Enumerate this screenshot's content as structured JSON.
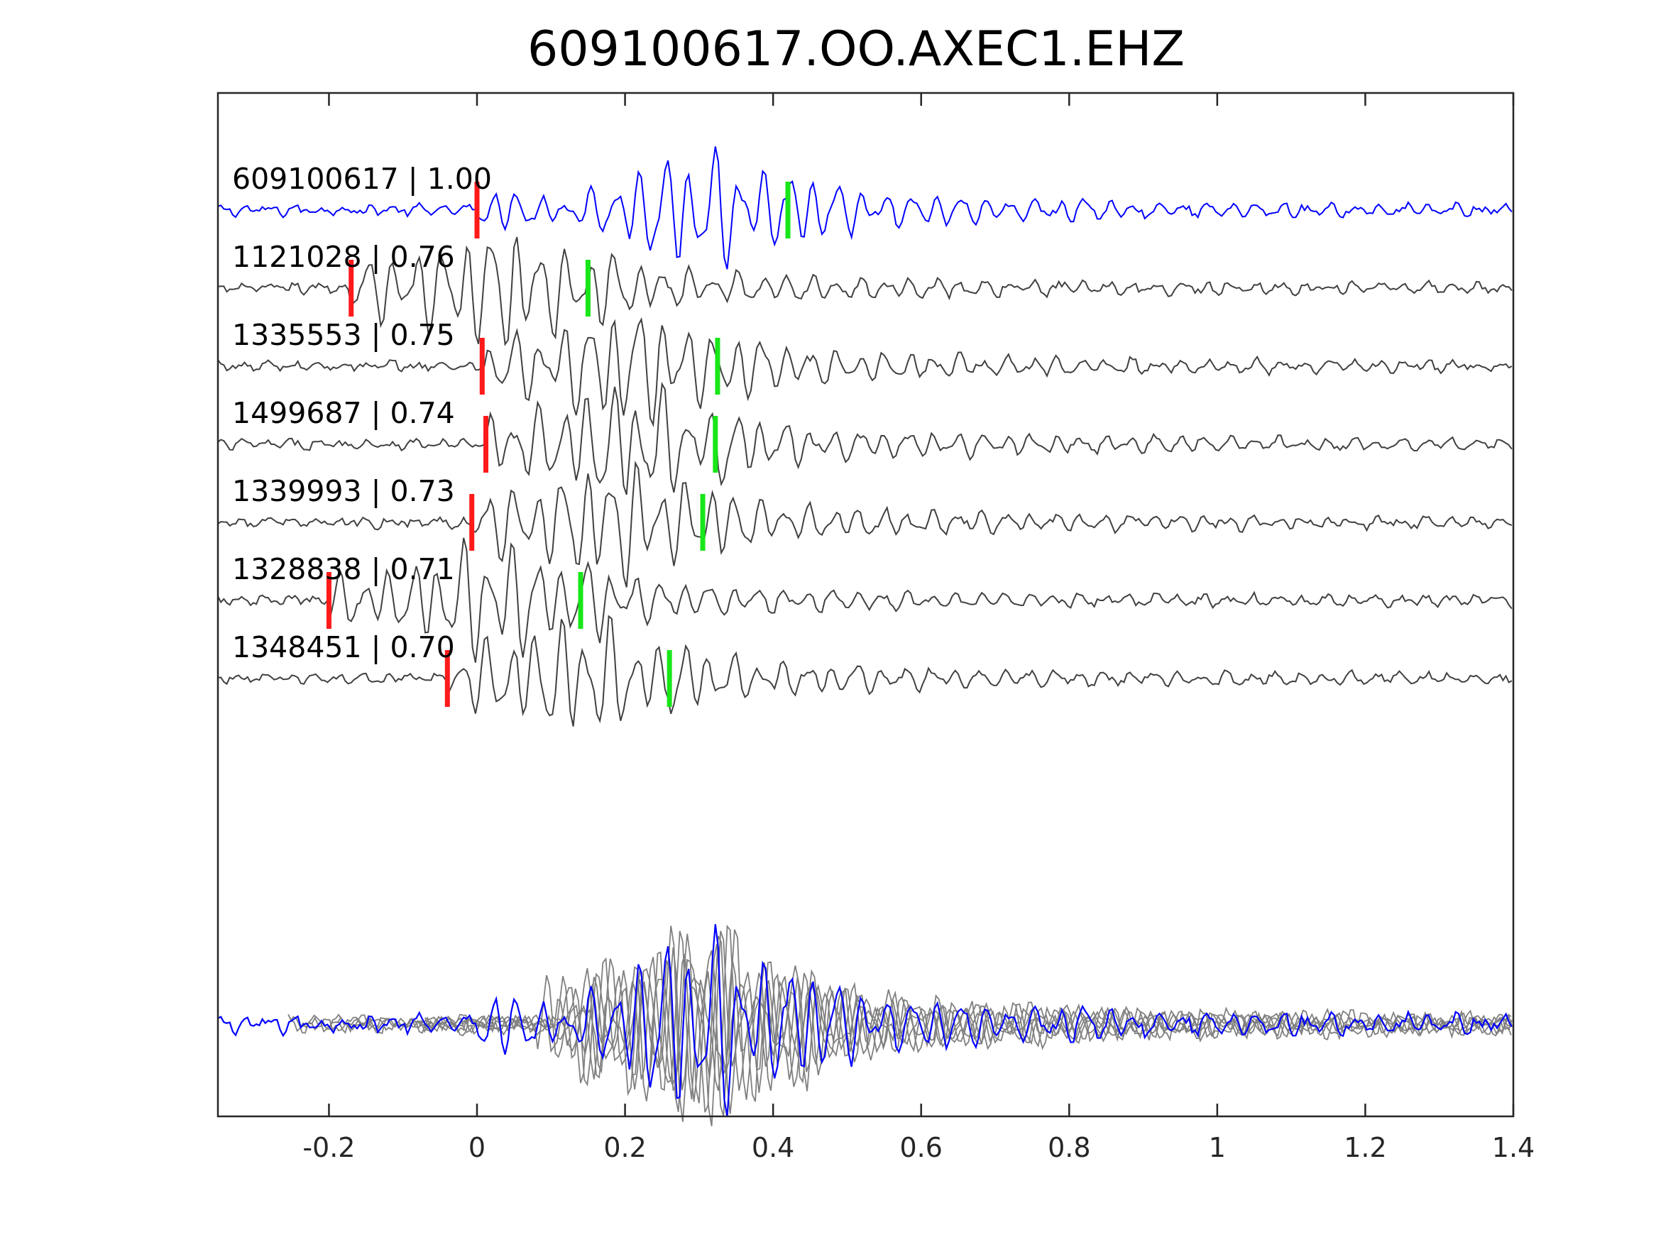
{
  "chart_data": {
    "type": "line",
    "title": "609100617.OO.AXEC1.EHZ",
    "xlabel": "",
    "ylabel": "",
    "xlim": [
      -0.35,
      1.4
    ],
    "x_ticks": [
      -0.2,
      0,
      0.2,
      0.4,
      0.6,
      0.8,
      1,
      1.2,
      1.4
    ],
    "x_tick_labels": [
      "-0.2",
      "0",
      "0.2",
      "0.4",
      "0.6",
      "0.8",
      "1",
      "1.2",
      "1.4"
    ],
    "grid": false,
    "legend": "none",
    "colors": {
      "reference_trace": "#0000ff",
      "matched_trace": "#404040",
      "stack_trace": "#808080",
      "p_pick": "#ff1a1a",
      "s_pick": "#19e619"
    },
    "traces": [
      {
        "event": "609100617",
        "label": "609100617 | 1.00",
        "cc": 1.0,
        "p_pick": 0.0,
        "s_pick": 0.42,
        "reference": true
      },
      {
        "event": "1121028",
        "label": "1121028 | 0.76",
        "cc": 0.76,
        "p_pick": -0.17,
        "s_pick": 0.15
      },
      {
        "event": "1335553",
        "label": "1335553 | 0.75",
        "cc": 0.75,
        "p_pick": 0.007,
        "s_pick": 0.325
      },
      {
        "event": "1499687",
        "label": "1499687 | 0.74",
        "cc": 0.74,
        "p_pick": 0.012,
        "s_pick": 0.322
      },
      {
        "event": "1339993",
        "label": "1339993 | 0.73",
        "cc": 0.73,
        "p_pick": -0.007,
        "s_pick": 0.305
      },
      {
        "event": "1328838",
        "label": "1328838 | 0.71",
        "cc": 0.71,
        "p_pick": -0.2,
        "s_pick": 0.14
      },
      {
        "event": "1348451",
        "label": "1348451 | 0.70",
        "cc": 0.7,
        "p_pick": -0.04,
        "s_pick": 0.26
      }
    ],
    "overlay": {
      "shows": "all traces aligned, reference in blue"
    }
  }
}
